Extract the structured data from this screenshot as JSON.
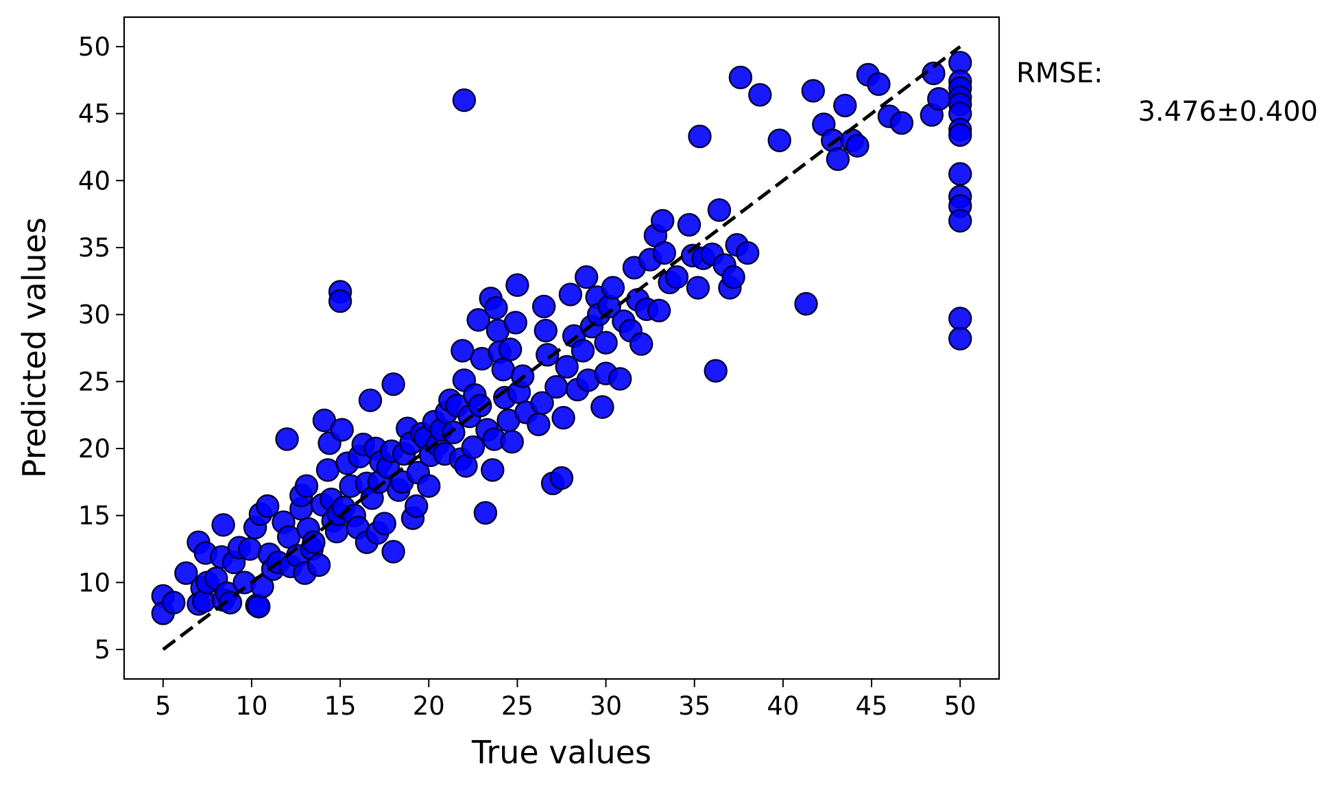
{
  "chart_data": {
    "type": "scatter",
    "xlabel": "True values",
    "ylabel": "Predicted values",
    "xlim": [
      2.8,
      52.2
    ],
    "ylim": [
      2.8,
      52.2
    ],
    "xticks": [
      5,
      10,
      15,
      20,
      25,
      30,
      35,
      40,
      45,
      50
    ],
    "yticks": [
      5,
      10,
      15,
      20,
      25,
      30,
      35,
      40,
      45,
      50
    ],
    "grid": false,
    "point_color": "#0000ff",
    "point_edge_color": "#000033",
    "line_color": "#000000",
    "reference_line": {
      "style": "dashed",
      "x": [
        5,
        50
      ],
      "y": [
        5,
        50
      ]
    },
    "annotation": {
      "label": "RMSE:",
      "value": "3.476±0.400"
    },
    "points": [
      [
        5.0,
        9.0
      ],
      [
        5.0,
        7.7
      ],
      [
        5.6,
        8.5
      ],
      [
        6.3,
        10.7
      ],
      [
        7.0,
        13.0
      ],
      [
        7.0,
        8.4
      ],
      [
        7.2,
        9.6
      ],
      [
        7.4,
        12.2
      ],
      [
        7.3,
        8.6
      ],
      [
        7.5,
        10.0
      ],
      [
        8.0,
        10.3
      ],
      [
        8.3,
        11.9
      ],
      [
        8.4,
        14.3
      ],
      [
        8.4,
        8.7
      ],
      [
        8.6,
        9.2
      ],
      [
        8.8,
        8.5
      ],
      [
        9.0,
        11.5
      ],
      [
        9.3,
        12.6
      ],
      [
        9.6,
        10.0
      ],
      [
        9.9,
        12.5
      ],
      [
        10.2,
        14.1
      ],
      [
        10.3,
        8.3
      ],
      [
        10.4,
        8.2
      ],
      [
        10.5,
        15.1
      ],
      [
        10.6,
        9.7
      ],
      [
        10.9,
        15.7
      ],
      [
        11.0,
        12.1
      ],
      [
        11.2,
        11.0
      ],
      [
        11.5,
        11.5
      ],
      [
        11.8,
        14.5
      ],
      [
        12.0,
        20.7
      ],
      [
        12.1,
        13.4
      ],
      [
        12.2,
        11.2
      ],
      [
        12.6,
        12.0
      ],
      [
        12.8,
        15.5
      ],
      [
        12.8,
        16.5
      ],
      [
        13.0,
        10.7
      ],
      [
        13.1,
        17.2
      ],
      [
        13.2,
        14.0
      ],
      [
        13.4,
        12.5
      ],
      [
        13.5,
        13.0
      ],
      [
        13.8,
        11.3
      ],
      [
        14.0,
        15.8
      ],
      [
        14.1,
        22.1
      ],
      [
        14.3,
        18.4
      ],
      [
        14.4,
        20.4
      ],
      [
        14.5,
        16.2
      ],
      [
        14.6,
        14.6
      ],
      [
        14.8,
        13.8
      ],
      [
        14.9,
        15.1
      ],
      [
        15.0,
        31.7
      ],
      [
        15.0,
        31.0
      ],
      [
        15.1,
        21.4
      ],
      [
        15.2,
        15.6
      ],
      [
        15.4,
        18.9
      ],
      [
        15.6,
        17.2
      ],
      [
        15.8,
        15.0
      ],
      [
        16.0,
        14.1
      ],
      [
        16.1,
        19.4
      ],
      [
        16.3,
        20.3
      ],
      [
        16.5,
        13.0
      ],
      [
        16.5,
        17.4
      ],
      [
        16.7,
        23.6
      ],
      [
        16.8,
        16.3
      ],
      [
        17.0,
        20.0
      ],
      [
        17.1,
        13.7
      ],
      [
        17.2,
        17.5
      ],
      [
        17.3,
        19.0
      ],
      [
        17.5,
        14.4
      ],
      [
        17.7,
        18.6
      ],
      [
        17.9,
        19.8
      ],
      [
        18.0,
        12.3
      ],
      [
        18.0,
        24.8
      ],
      [
        18.3,
        16.9
      ],
      [
        18.5,
        17.5
      ],
      [
        18.6,
        19.6
      ],
      [
        18.8,
        21.5
      ],
      [
        19.0,
        20.4
      ],
      [
        19.1,
        14.8
      ],
      [
        19.3,
        15.7
      ],
      [
        19.4,
        18.2
      ],
      [
        19.6,
        21.1
      ],
      [
        19.8,
        20.8
      ],
      [
        20.0,
        17.2
      ],
      [
        20.1,
        19.5
      ],
      [
        20.3,
        22.0
      ],
      [
        20.5,
        20.3
      ],
      [
        20.7,
        21.4
      ],
      [
        20.9,
        19.6
      ],
      [
        21.0,
        22.7
      ],
      [
        21.2,
        23.6
      ],
      [
        21.4,
        21.2
      ],
      [
        21.6,
        23.2
      ],
      [
        21.8,
        19.2
      ],
      [
        22.0,
        46.0
      ],
      [
        21.9,
        27.3
      ],
      [
        22.0,
        25.1
      ],
      [
        22.1,
        18.7
      ],
      [
        22.3,
        22.4
      ],
      [
        22.5,
        20.1
      ],
      [
        22.6,
        24.0
      ],
      [
        22.8,
        29.6
      ],
      [
        22.9,
        23.2
      ],
      [
        23.0,
        26.7
      ],
      [
        23.2,
        15.2
      ],
      [
        23.3,
        21.4
      ],
      [
        23.5,
        31.2
      ],
      [
        23.6,
        18.4
      ],
      [
        23.7,
        20.7
      ],
      [
        23.8,
        30.5
      ],
      [
        23.9,
        28.8
      ],
      [
        24.0,
        27.2
      ],
      [
        24.2,
        25.9
      ],
      [
        24.3,
        23.8
      ],
      [
        24.5,
        22.1
      ],
      [
        24.6,
        27.4
      ],
      [
        24.7,
        20.5
      ],
      [
        24.9,
        29.4
      ],
      [
        25.0,
        32.2
      ],
      [
        25.1,
        24.2
      ],
      [
        25.3,
        25.4
      ],
      [
        25.5,
        22.7
      ],
      [
        26.2,
        21.8
      ],
      [
        26.4,
        23.4
      ],
      [
        26.5,
        30.6
      ],
      [
        26.6,
        28.8
      ],
      [
        26.7,
        27.0
      ],
      [
        27.0,
        17.4
      ],
      [
        27.2,
        24.6
      ],
      [
        27.5,
        17.8
      ],
      [
        27.6,
        22.3
      ],
      [
        27.8,
        26.1
      ],
      [
        28.0,
        31.5
      ],
      [
        28.2,
        28.4
      ],
      [
        28.4,
        24.4
      ],
      [
        28.7,
        27.3
      ],
      [
        28.9,
        32.8
      ],
      [
        29.0,
        25.1
      ],
      [
        29.2,
        29.1
      ],
      [
        29.5,
        31.3
      ],
      [
        29.6,
        30.0
      ],
      [
        29.8,
        23.1
      ],
      [
        30.0,
        27.9
      ],
      [
        30.0,
        25.6
      ],
      [
        30.2,
        30.6
      ],
      [
        30.4,
        32.0
      ],
      [
        30.8,
        25.2
      ],
      [
        31.0,
        29.5
      ],
      [
        31.4,
        28.8
      ],
      [
        31.6,
        33.5
      ],
      [
        31.8,
        31.1
      ],
      [
        32.0,
        27.8
      ],
      [
        32.3,
        30.4
      ],
      [
        32.5,
        34.1
      ],
      [
        32.8,
        35.9
      ],
      [
        33.0,
        30.3
      ],
      [
        33.2,
        37.0
      ],
      [
        33.3,
        34.6
      ],
      [
        33.6,
        32.4
      ],
      [
        34.0,
        32.8
      ],
      [
        34.7,
        36.7
      ],
      [
        34.9,
        34.4
      ],
      [
        35.2,
        32.0
      ],
      [
        35.3,
        43.3
      ],
      [
        35.5,
        34.2
      ],
      [
        36.0,
        34.5
      ],
      [
        36.2,
        25.8
      ],
      [
        36.4,
        37.8
      ],
      [
        36.7,
        33.7
      ],
      [
        37.0,
        32.0
      ],
      [
        37.2,
        32.8
      ],
      [
        37.4,
        35.2
      ],
      [
        37.6,
        47.7
      ],
      [
        38.0,
        34.6
      ],
      [
        38.7,
        46.4
      ],
      [
        39.8,
        43.0
      ],
      [
        41.3,
        30.8
      ],
      [
        41.7,
        46.7
      ],
      [
        42.3,
        44.2
      ],
      [
        42.8,
        43.0
      ],
      [
        43.1,
        41.6
      ],
      [
        43.5,
        45.6
      ],
      [
        43.9,
        43.0
      ],
      [
        44.2,
        42.6
      ],
      [
        44.8,
        47.9
      ],
      [
        45.4,
        47.2
      ],
      [
        46.0,
        44.8
      ],
      [
        46.7,
        44.3
      ],
      [
        48.4,
        44.9
      ],
      [
        48.5,
        48.0
      ],
      [
        48.8,
        46.1
      ],
      [
        50.0,
        48.8
      ],
      [
        50.0,
        47.4
      ],
      [
        50.0,
        46.9
      ],
      [
        50.0,
        46.2
      ],
      [
        50.0,
        45.7
      ],
      [
        50.0,
        45.0
      ],
      [
        50.0,
        43.8
      ],
      [
        50.0,
        43.4
      ],
      [
        50.0,
        40.5
      ],
      [
        50.0,
        38.8
      ],
      [
        50.0,
        38.1
      ],
      [
        50.0,
        37.0
      ],
      [
        50.0,
        29.7
      ],
      [
        50.0,
        28.2
      ]
    ]
  }
}
